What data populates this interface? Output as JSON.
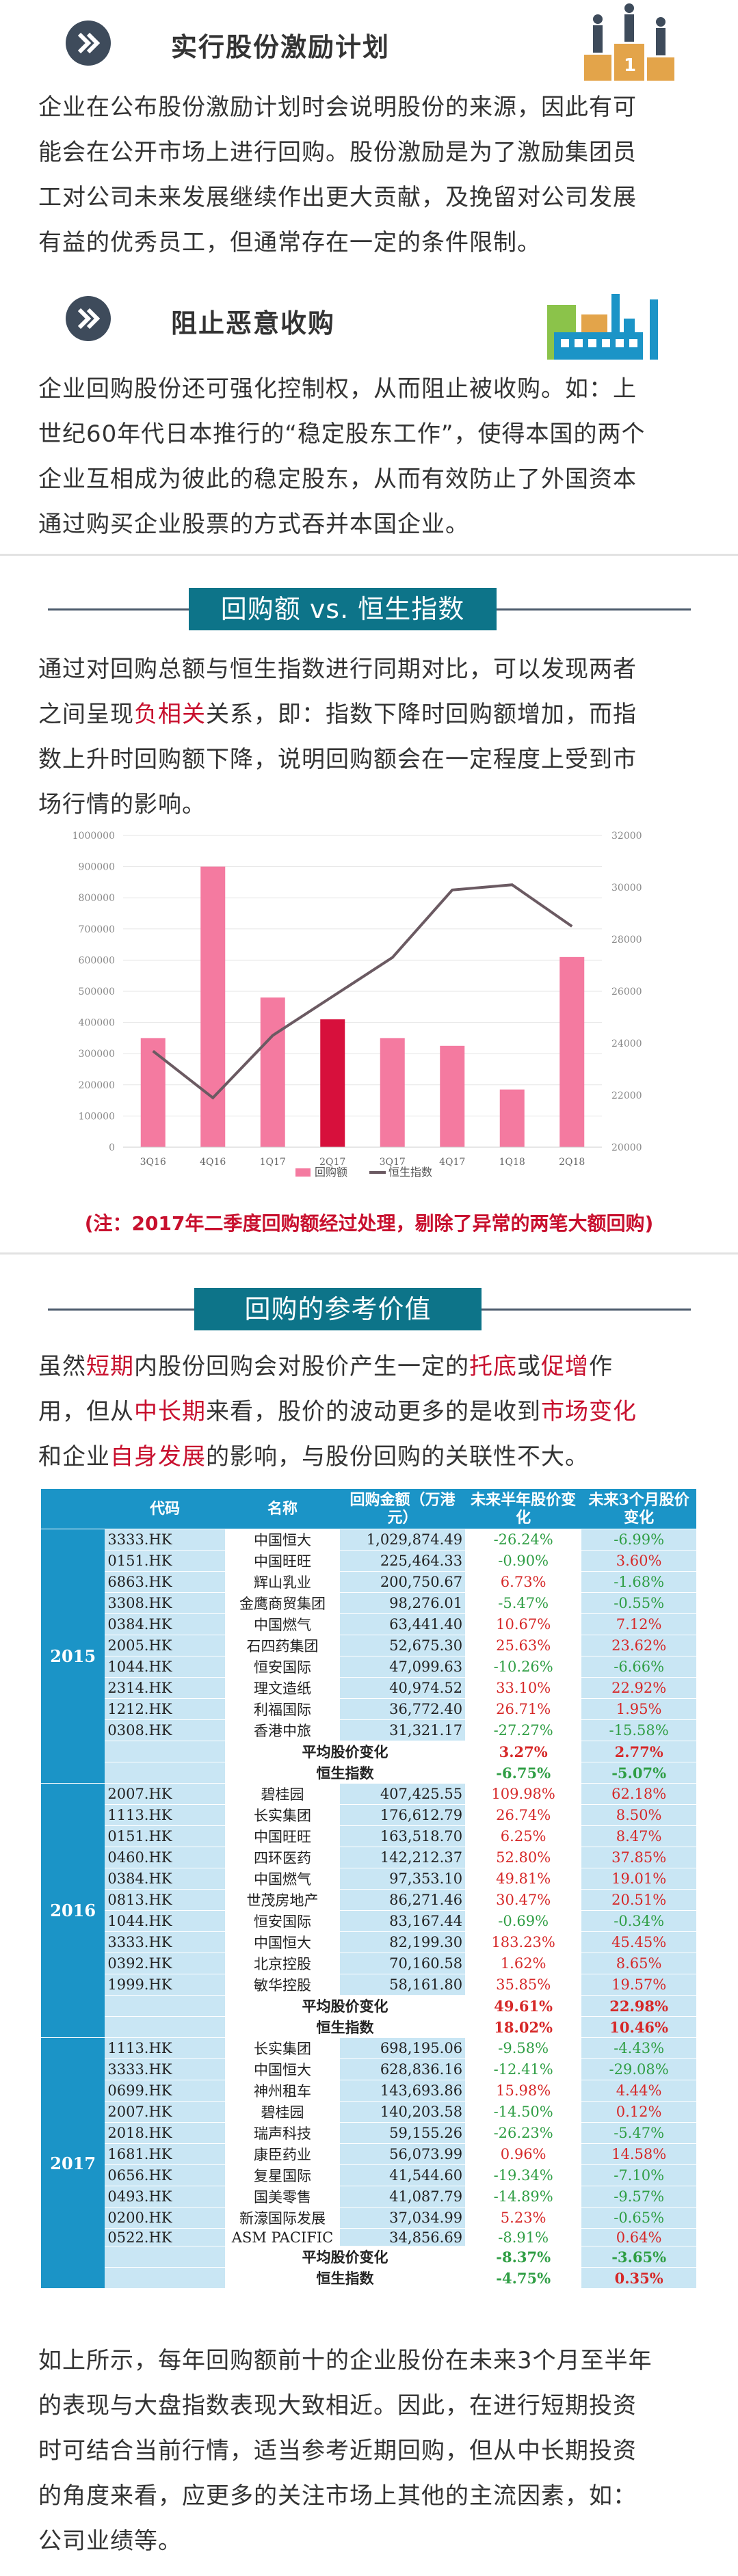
{
  "sections": {
    "incentive": {
      "title": "实行股份激励计划",
      "lines": [
        "企业在公布股份激励计划时会说明股份的来源，因此有可",
        "能会在公开市场上进行回购。股份激励是为了激励集团员",
        "工对公司未来发展继续作出更大贡献，及挽留对公司发展",
        "有益的优秀员工，但通常存在一定的条件限制。"
      ]
    },
    "takeover": {
      "title": "阻止恶意收购",
      "lines": [
        "企业回购股份还可强化控制权，从而阻止被收购。如：上",
        "世纪60年代日本推行的“稳定股东工作”，使得本国的两个",
        "企业互相成为彼此的稳定股东，从而有效防止了外国资本",
        "通过购买企业股票的方式吞并本国企业。"
      ]
    }
  },
  "compare": {
    "banner": "回购额 vs. 恒生指数",
    "line1": "通过对回购总额与恒生指数进行同期对比，可以发现两者",
    "line2_a": "之间呈现",
    "line2_hl": "负相关",
    "line2_b": "关系，即：指数下降时回购额增加，而指",
    "line3": "数上升时回购额下降，说明回购额会在一定程度上受到市",
    "line4": "场行情的影响。",
    "note": "(注：2017年二季度回购额经过处理，剔除了异常的两笔大额回购)"
  },
  "chart_data": {
    "type": "bar",
    "categories": [
      "3Q16",
      "4Q16",
      "1Q17",
      "2Q17",
      "3Q17",
      "4Q17",
      "1Q18",
      "2Q18"
    ],
    "series": [
      {
        "name": "回购额",
        "type": "bar",
        "axis": "left",
        "values": [
          350000,
          900000,
          480000,
          410000,
          350000,
          325000,
          185000,
          610000
        ],
        "highlight_index": 3
      },
      {
        "name": "恒生指数",
        "type": "line",
        "axis": "right",
        "values": [
          23700,
          21900,
          24300,
          25800,
          27300,
          29900,
          30100,
          28500
        ]
      }
    ],
    "left_axis": {
      "ticks": [
        "0",
        "100000",
        "200000",
        "300000",
        "400000",
        "500000",
        "600000",
        "700000",
        "800000",
        "900000",
        "1000000"
      ],
      "min": 0,
      "max": 1000000
    },
    "right_axis": {
      "ticks": [
        "20000",
        "22000",
        "24000",
        "26000",
        "28000",
        "30000",
        "32000"
      ],
      "min": 20000,
      "max": 32000
    },
    "colors": {
      "bar": "#f47aa0",
      "highlight": "#d7103c",
      "line": "#6b5a62"
    },
    "legend": "bottom"
  },
  "reference": {
    "banner": "回购的参考价值",
    "l1": [
      [
        "虽然",
        ""
      ],
      [
        "短期",
        "hl"
      ],
      [
        "内股份回购会对股价产生一定的",
        ""
      ],
      [
        "托底",
        "hl"
      ],
      [
        "或",
        ""
      ],
      [
        "促增",
        "hl"
      ],
      [
        "作",
        ""
      ]
    ],
    "l2": [
      [
        "用，但从",
        ""
      ],
      [
        "中长期",
        "hl"
      ],
      [
        "来看，股价的波动更多的是收到",
        ""
      ],
      [
        "市场变化",
        "hl"
      ]
    ],
    "l3": [
      [
        "和企业",
        ""
      ],
      [
        "自身发展",
        "hl"
      ],
      [
        "的影响，与股份回购的关联性不大。",
        ""
      ]
    ]
  },
  "table": {
    "headers": [
      "代码",
      "名称",
      "回购金额（万港元）",
      "未来半年股价变化",
      "未来3个月股价变化"
    ],
    "groups": [
      {
        "year": "2015",
        "rows": [
          [
            "3333.HK",
            "中国恒大",
            "1,029,874.49",
            "-26.24%",
            "-6.99%"
          ],
          [
            "0151.HK",
            "中国旺旺",
            "225,464.33",
            "-0.90%",
            "3.60%"
          ],
          [
            "6863.HK",
            "辉山乳业",
            "200,750.67",
            "6.73%",
            "-1.68%"
          ],
          [
            "3308.HK",
            "金鹰商贸集团",
            "98,276.01",
            "-5.47%",
            "-0.55%"
          ],
          [
            "0384.HK",
            "中国燃气",
            "63,441.40",
            "10.67%",
            "7.12%"
          ],
          [
            "2005.HK",
            "石四药集团",
            "52,675.30",
            "25.63%",
            "23.62%"
          ],
          [
            "1044.HK",
            "恒安国际",
            "47,099.63",
            "-10.26%",
            "-6.66%"
          ],
          [
            "2314.HK",
            "理文造纸",
            "40,974.52",
            "33.10%",
            "22.92%"
          ],
          [
            "1212.HK",
            "利福国际",
            "36,772.40",
            "26.71%",
            "1.95%"
          ],
          [
            "0308.HK",
            "香港中旅",
            "31,321.17",
            "-27.27%",
            "-15.58%"
          ]
        ],
        "summary": [
          [
            "平均股价变化",
            "3.27%",
            "2.77%"
          ],
          [
            "恒生指数",
            "-6.75%",
            "-5.07%"
          ]
        ]
      },
      {
        "year": "2016",
        "rows": [
          [
            "2007.HK",
            "碧桂园",
            "407,425.55",
            "109.98%",
            "62.18%"
          ],
          [
            "1113.HK",
            "长实集团",
            "176,612.79",
            "26.74%",
            "8.50%"
          ],
          [
            "0151.HK",
            "中国旺旺",
            "163,518.70",
            "6.25%",
            "8.47%"
          ],
          [
            "0460.HK",
            "四环医药",
            "142,212.37",
            "52.80%",
            "37.85%"
          ],
          [
            "0384.HK",
            "中国燃气",
            "97,353.10",
            "49.81%",
            "19.01%"
          ],
          [
            "0813.HK",
            "世茂房地产",
            "86,271.46",
            "30.47%",
            "20.51%"
          ],
          [
            "1044.HK",
            "恒安国际",
            "83,167.44",
            "-0.69%",
            "-0.34%"
          ],
          [
            "3333.HK",
            "中国恒大",
            "82,199.30",
            "183.23%",
            "45.45%"
          ],
          [
            "0392.HK",
            "北京控股",
            "70,160.58",
            "1.62%",
            "8.65%"
          ],
          [
            "1999.HK",
            "敏华控股",
            "58,161.80",
            "35.85%",
            "19.57%"
          ]
        ],
        "summary": [
          [
            "平均股价变化",
            "49.61%",
            "22.98%"
          ],
          [
            "恒生指数",
            "18.02%",
            "10.46%"
          ]
        ]
      },
      {
        "year": "2017",
        "rows": [
          [
            "1113.HK",
            "长实集团",
            "698,195.06",
            "-9.58%",
            "-4.43%"
          ],
          [
            "3333.HK",
            "中国恒大",
            "628,836.16",
            "-12.41%",
            "-29.08%"
          ],
          [
            "0699.HK",
            "神州租车",
            "143,693.86",
            "15.98%",
            "4.44%"
          ],
          [
            "2007.HK",
            "碧桂园",
            "140,203.58",
            "-14.50%",
            "0.12%"
          ],
          [
            "2018.HK",
            "瑞声科技",
            "59,155.26",
            "-26.23%",
            "-5.47%"
          ],
          [
            "1681.HK",
            "康臣药业",
            "56,073.99",
            "0.96%",
            "14.58%"
          ],
          [
            "0656.HK",
            "复星国际",
            "41,544.60",
            "-19.34%",
            "-7.10%"
          ],
          [
            "0493.HK",
            "国美零售",
            "41,087.79",
            "-14.89%",
            "-9.57%"
          ],
          [
            "0200.HK",
            "新濠国际发展",
            "37,034.99",
            "5.23%",
            "-0.65%"
          ],
          [
            "0522.HK",
            "ASM PACIFIC",
            "34,856.69",
            "-8.91%",
            "0.64%"
          ]
        ],
        "summary": [
          [
            "平均股价变化",
            "-8.37%",
            "-3.65%"
          ],
          [
            "恒生指数",
            "-4.75%",
            "0.35%"
          ]
        ]
      }
    ]
  },
  "conclusion": {
    "lines": [
      "如上所示，每年回购额前十的企业股份在未来3个月至半年",
      "的表现与大盘指数表现大致相近。因此，在进行短期投资",
      "时可结合当前行情，适当参考近期回购，但从中长期投资",
      "的角度来看，应更多的关注市场上其他的主流因素，如：",
      "公司业绩等。"
    ]
  }
}
